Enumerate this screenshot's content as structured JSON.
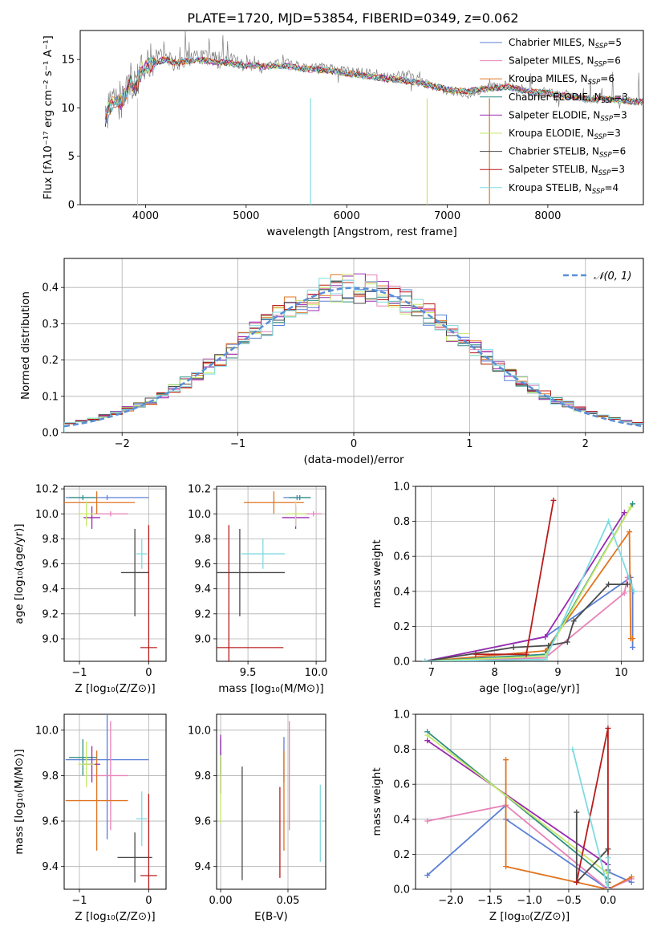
{
  "figure": {
    "title": "PLATE=1720, MJD=53854, FIBERID=0349, z=0.062"
  },
  "models": [
    {
      "name": "Chabrier MILES",
      "nssp": 5,
      "color": "#5a7fd6"
    },
    {
      "name": "Salpeter MILES",
      "nssp": 6,
      "color": "#e882b8"
    },
    {
      "name": "Kroupa MILES",
      "nssp": 6,
      "color": "#e07420"
    },
    {
      "name": "Chabrier ELODIE",
      "nssp": 3,
      "color": "#2f8f82"
    },
    {
      "name": "Salpeter ELODIE",
      "nssp": 3,
      "color": "#9a2ab0"
    },
    {
      "name": "Kroupa ELODIE",
      "nssp": 3,
      "color": "#c6e86a"
    },
    {
      "name": "Chabrier STELIB",
      "nssp": 6,
      "color": "#4a4a4a"
    },
    {
      "name": "Salpeter STELIB",
      "nssp": 3,
      "color": "#b81c1c"
    },
    {
      "name": "Kroupa STELIB",
      "nssp": 4,
      "color": "#7fdbe0"
    }
  ],
  "chart_data": [
    {
      "id": "spectrum",
      "type": "line",
      "xlabel": "wavelength [Angstrom, rest frame]",
      "ylabel": "Flux [fλ10⁻¹⁷ erg cm⁻² s⁻¹ A⁻¹]",
      "xlim": [
        3350,
        8950
      ],
      "ylim": [
        0,
        18
      ],
      "xticks": [
        4000,
        5000,
        6000,
        7000,
        8000
      ],
      "yticks": [
        0,
        5,
        10,
        15
      ],
      "grid": false,
      "legend": "top-right",
      "data_series": {
        "name": "",
        "color": "#808080",
        "x": [
          3600,
          3650,
          3700,
          3750,
          3800,
          3850,
          3900,
          3950,
          4000,
          4100,
          4200,
          4300,
          4400,
          4500,
          4600,
          4700,
          4800,
          4900,
          5000,
          5200,
          5400,
          5600,
          5800,
          6000,
          6200,
          6400,
          6600,
          6800,
          7000,
          7200,
          7400,
          7600,
          7800,
          8000,
          8200,
          8400,
          8600,
          8800,
          8950
        ],
        "y": [
          8.5,
          10.5,
          11.2,
          10.4,
          11.5,
          13.0,
          12.2,
          14.0,
          14.8,
          15.2,
          15.3,
          14.5,
          15.1,
          15.3,
          15.1,
          14.9,
          15.0,
          14.6,
          14.6,
          14.4,
          14.6,
          14.1,
          14.2,
          13.8,
          13.6,
          13.2,
          13.5,
          12.4,
          11.8,
          11.4,
          12.1,
          12.3,
          11.8,
          11.6,
          11.4,
          10.9,
          11.0,
          10.8,
          10.7
        ]
      },
      "model_fit": {
        "x": [
          3600,
          3650,
          3700,
          3750,
          3800,
          3850,
          3900,
          3950,
          4000,
          4100,
          4200,
          4300,
          4400,
          4500,
          4600,
          4700,
          4800,
          4900,
          5000,
          5200,
          5400,
          5600,
          5800,
          6000,
          6200,
          6400,
          6600,
          6800,
          7000,
          7200,
          7400,
          7600,
          7800,
          8000,
          8200,
          8400,
          8600,
          8800,
          8950
        ],
        "y": [
          8.8,
          10.2,
          10.8,
          10.6,
          11.3,
          12.6,
          12.0,
          13.6,
          14.3,
          14.7,
          15.0,
          14.6,
          14.8,
          15.0,
          14.9,
          14.7,
          14.7,
          14.5,
          14.4,
          14.3,
          14.3,
          14.0,
          13.9,
          13.6,
          13.3,
          13.0,
          12.8,
          12.4,
          11.9,
          11.7,
          12.0,
          12.2,
          11.7,
          11.5,
          11.2,
          10.9,
          10.9,
          10.7,
          10.6
        ]
      },
      "dropouts": [
        {
          "x": 3920,
          "series": "Kroupa ELODIE"
        },
        {
          "x": 5640,
          "series": "Kroupa STELIB"
        },
        {
          "x": 6800,
          "series": "Kroupa ELODIE"
        },
        {
          "x": 7420,
          "series": "Kroupa MILES"
        }
      ]
    },
    {
      "id": "residuals",
      "type": "line",
      "xlabel": "(data-model)/error",
      "ylabel": "Normed distribution",
      "xlim": [
        -2.5,
        2.5
      ],
      "ylim": [
        0,
        0.48
      ],
      "xticks": [
        -2,
        -1,
        0,
        1,
        2
      ],
      "yticks": [
        0.0,
        0.1,
        0.2,
        0.3,
        0.4
      ],
      "grid": true,
      "legend": "top-right",
      "reference": {
        "label": "𝒩(0, 1)",
        "mean": 0,
        "sigma": 1,
        "color": "#5a8fd6"
      },
      "bin_width": 0.1
    },
    {
      "id": "age-vs-Z",
      "type": "scatter",
      "xlabel": "Z [log₁₀(Z/Z⊙)]",
      "ylabel": "age  [log₁₀(age/yr)]",
      "xlim": [
        -1.22,
        0.25
      ],
      "ylim": [
        8.82,
        10.22
      ],
      "xticks": [
        -1,
        0
      ],
      "yticks": [
        9.0,
        9.2,
        9.4,
        9.6,
        9.8,
        10.0,
        10.2
      ],
      "grid": true,
      "points": [
        {
          "series": "Chabrier MILES",
          "x": -0.6,
          "y": 10.13,
          "xerr": 0.6,
          "yerr": 0.02
        },
        {
          "series": "Salpeter MILES",
          "x": -0.55,
          "y": 10.0,
          "xerr": 0.25,
          "yerr": 0.02
        },
        {
          "series": "Kroupa MILES",
          "x": -0.75,
          "y": 10.09,
          "xerr": 0.55,
          "yerr": 0.09
        },
        {
          "series": "Chabrier ELODIE",
          "x": -0.95,
          "y": 10.13,
          "xerr": 0.2,
          "yerr": 0.02
        },
        {
          "series": "Salpeter ELODIE",
          "x": -0.82,
          "y": 9.97,
          "xerr": 0.12,
          "yerr": 0.09
        },
        {
          "series": "Kroupa ELODIE",
          "x": -0.9,
          "y": 10.0,
          "xerr": 0.12,
          "yerr": 0.1
        },
        {
          "series": "Chabrier STELIB",
          "x": -0.2,
          "y": 9.53,
          "xerr": 0.2,
          "yerr": 0.35
        },
        {
          "series": "Salpeter STELIB",
          "x": 0.0,
          "y": 8.93,
          "xerr": 0.12,
          "yerr": 0.98
        },
        {
          "series": "Kroupa STELIB",
          "x": -0.1,
          "y": 9.68,
          "xerr": 0.08,
          "yerr": 0.12
        }
      ]
    },
    {
      "id": "age-vs-mass",
      "type": "scatter",
      "xlabel": "mass [log₁₀(M/M⊙)]",
      "ylabel": "",
      "xlim": [
        9.27,
        10.07
      ],
      "ylim": [
        8.82,
        10.22
      ],
      "xticks": [
        9.5,
        10.0
      ],
      "yticks": [
        9.0,
        9.2,
        9.4,
        9.6,
        9.8,
        10.0,
        10.2
      ],
      "grid": true,
      "points": [
        {
          "series": "Chabrier MILES",
          "x": 9.86,
          "y": 10.13,
          "xerr": 0.1,
          "yerr": 0.02
        },
        {
          "series": "Salpeter MILES",
          "x": 9.98,
          "y": 10.0,
          "xerr": 0.06,
          "yerr": 0.02
        },
        {
          "series": "Kroupa MILES",
          "x": 9.69,
          "y": 10.09,
          "xerr": 0.22,
          "yerr": 0.09
        },
        {
          "series": "Chabrier ELODIE",
          "x": 9.88,
          "y": 10.13,
          "xerr": 0.08,
          "yerr": 0.02
        },
        {
          "series": "Salpeter ELODIE",
          "x": 9.85,
          "y": 9.97,
          "xerr": 0.1,
          "yerr": 0.09
        },
        {
          "series": "Kroupa ELODIE",
          "x": 9.85,
          "y": 10.0,
          "xerr": 0.08,
          "yerr": 0.1
        },
        {
          "series": "Chabrier STELIB",
          "x": 9.44,
          "y": 9.53,
          "xerr": 0.33,
          "yerr": 0.35
        },
        {
          "series": "Salpeter STELIB",
          "x": 9.36,
          "y": 8.93,
          "xerr": 0.4,
          "yerr": 0.98
        },
        {
          "series": "Kroupa STELIB",
          "x": 9.61,
          "y": 9.68,
          "xerr": 0.16,
          "yerr": 0.12
        }
      ]
    },
    {
      "id": "weight-vs-age",
      "type": "line",
      "xlabel": "age  [log₁₀(age/yr)]",
      "ylabel": "mass weight",
      "xlim": [
        6.75,
        10.35
      ],
      "ylim": [
        0,
        1.0
      ],
      "xticks": [
        7,
        8,
        9,
        10
      ],
      "yticks": [
        0.0,
        0.2,
        0.4,
        0.6,
        0.8,
        1.0
      ],
      "grid": true,
      "series": [
        {
          "name": "Chabrier MILES",
          "x": [
            6.9,
            8.8,
            10.15,
            10.18,
            10.18
          ],
          "y": [
            0.0,
            0.14,
            0.48,
            0.4,
            0.08
          ]
        },
        {
          "name": "Salpeter MILES",
          "x": [
            6.9,
            8.8,
            10.05,
            10.1
          ],
          "y": [
            0.0,
            0.02,
            0.39,
            0.48
          ]
        },
        {
          "name": "Kroupa MILES",
          "x": [
            6.9,
            8.8,
            10.13,
            10.15,
            10.18
          ],
          "y": [
            0.0,
            0.06,
            0.74,
            0.13,
            0.13
          ]
        },
        {
          "name": "Chabrier ELODIE",
          "x": [
            6.9,
            8.8,
            10.18
          ],
          "y": [
            0.0,
            0.04,
            0.9
          ]
        },
        {
          "name": "Salpeter ELODIE",
          "x": [
            6.9,
            8.8,
            10.05
          ],
          "y": [
            0.0,
            0.14,
            0.85
          ]
        },
        {
          "name": "Kroupa ELODIE",
          "x": [
            6.9,
            8.8,
            10.15
          ],
          "y": [
            0.0,
            0.03,
            0.88
          ]
        },
        {
          "name": "Chabrier STELIB",
          "x": [
            6.9,
            8.3,
            8.85,
            9.15,
            9.25,
            9.8,
            10.1
          ],
          "y": [
            0.0,
            0.08,
            0.09,
            0.11,
            0.23,
            0.44,
            0.44
          ]
        },
        {
          "name": "Salpeter STELIB",
          "x": [
            7.7,
            8.5,
            8.93
          ],
          "y": [
            0.04,
            0.04,
            0.92
          ]
        },
        {
          "name": "Kroupa STELIB",
          "x": [
            6.9,
            8.8,
            9.8,
            10.2
          ],
          "y": [
            0.0,
            0.01,
            0.8,
            0.4
          ]
        }
      ]
    },
    {
      "id": "mass-vs-Z",
      "type": "scatter",
      "xlabel": "Z [log₁₀(Z/Z⊙)]",
      "ylabel": "mass [log₁₀(M/M⊙)]",
      "xlim": [
        -1.22,
        0.25
      ],
      "ylim": [
        9.3,
        10.07
      ],
      "xticks": [
        -1,
        0
      ],
      "yticks": [
        9.4,
        9.6,
        9.8,
        10.0
      ],
      "grid": true,
      "points": [
        {
          "series": "Chabrier MILES",
          "x": -0.6,
          "y": 9.87,
          "xerr": 0.6,
          "yerr": 0.35
        },
        {
          "series": "Salpeter MILES",
          "x": -0.55,
          "y": 9.8,
          "xerr": 0.25,
          "yerr": 0.24
        },
        {
          "series": "Kroupa MILES",
          "x": -0.75,
          "y": 9.69,
          "xerr": 0.45,
          "yerr": 0.22
        },
        {
          "series": "Chabrier ELODIE",
          "x": -0.95,
          "y": 9.88,
          "xerr": 0.2,
          "yerr": 0.08
        },
        {
          "series": "Salpeter ELODIE",
          "x": -0.82,
          "y": 9.85,
          "xerr": 0.12,
          "yerr": 0.08
        },
        {
          "series": "Kroupa ELODIE",
          "x": -0.9,
          "y": 9.85,
          "xerr": 0.12,
          "yerr": 0.1
        },
        {
          "series": "Chabrier STELIB",
          "x": -0.2,
          "y": 9.44,
          "xerr": 0.25,
          "yerr": 0.11
        },
        {
          "series": "Salpeter STELIB",
          "x": 0.0,
          "y": 9.36,
          "xerr": 0.12,
          "yerr": 0.36
        },
        {
          "series": "Kroupa STELIB",
          "x": -0.1,
          "y": 9.61,
          "xerr": 0.08,
          "yerr": 0.12
        }
      ]
    },
    {
      "id": "mass-vs-ebv",
      "type": "scatter",
      "xlabel": "E(B-V)",
      "ylabel": "",
      "xlim": [
        -0.003,
        0.078
      ],
      "ylim": [
        9.3,
        10.07
      ],
      "xticks": [
        0.0,
        0.05
      ],
      "yticks": [
        9.4,
        9.6,
        9.8,
        10.0
      ],
      "grid": true,
      "points": [
        {
          "series": "Chabrier MILES",
          "x": 0.047,
          "y": 9.87,
          "xerr": 0,
          "yerr": 0.1
        },
        {
          "series": "Salpeter MILES",
          "x": 0.051,
          "y": 9.8,
          "xerr": 0,
          "yerr": 0.24
        },
        {
          "series": "Kroupa MILES",
          "x": 0.047,
          "y": 9.69,
          "xerr": 0,
          "yerr": 0.22
        },
        {
          "series": "Chabrier ELODIE",
          "x": 0.0,
          "y": 9.88,
          "xerr": 0,
          "yerr": 0.08
        },
        {
          "series": "Salpeter ELODIE",
          "x": 0.0,
          "y": 9.85,
          "xerr": 0,
          "yerr": 0.13
        },
        {
          "series": "Kroupa ELODIE",
          "x": 0.0,
          "y": 9.74,
          "xerr": 0,
          "yerr": 0.15
        },
        {
          "series": "Chabrier STELIB",
          "x": 0.016,
          "y": 9.59,
          "xerr": 0,
          "yerr": 0.25
        },
        {
          "series": "Salpeter STELIB",
          "x": 0.044,
          "y": 9.55,
          "xerr": 0,
          "yerr": 0.2
        },
        {
          "series": "Kroupa STELIB",
          "x": 0.074,
          "y": 9.59,
          "xerr": 0,
          "yerr": 0.17
        }
      ]
    },
    {
      "id": "weight-vs-Z",
      "type": "line",
      "xlabel": "Z [log₁₀(Z/Z⊙)]",
      "ylabel": "mass weight",
      "xlim": [
        -2.45,
        0.45
      ],
      "ylim": [
        0,
        1.0
      ],
      "xticks": [
        -2.0,
        -1.5,
        -1.0,
        -0.5,
        0.0
      ],
      "yticks": [
        0.0,
        0.2,
        0.4,
        0.6,
        0.8,
        1.0
      ],
      "grid": true,
      "series": [
        {
          "name": "Chabrier MILES",
          "x": [
            -2.3,
            -1.3,
            -1.3,
            0.0,
            0.0,
            0.3
          ],
          "y": [
            0.08,
            0.48,
            0.4,
            0.0,
            0.1,
            0.04
          ]
        },
        {
          "name": "Salpeter MILES",
          "x": [
            -2.3,
            -1.3,
            0.0,
            0.3
          ],
          "y": [
            0.39,
            0.48,
            0.0,
            0.06
          ]
        },
        {
          "name": "Kroupa MILES",
          "x": [
            -1.3,
            -1.3,
            0.0,
            0.3
          ],
          "y": [
            0.74,
            0.13,
            0.0,
            0.07
          ]
        },
        {
          "name": "Chabrier ELODIE",
          "x": [
            -2.3,
            0.0,
            0.0
          ],
          "y": [
            0.9,
            0.06,
            0.04
          ]
        },
        {
          "name": "Salpeter ELODIE",
          "x": [
            -2.3,
            0.0,
            0.0
          ],
          "y": [
            0.85,
            0.14,
            0.01
          ]
        },
        {
          "name": "Kroupa ELODIE",
          "x": [
            -2.3,
            0.0,
            0.0
          ],
          "y": [
            0.88,
            0.09,
            0.03
          ]
        },
        {
          "name": "Chabrier STELIB",
          "x": [
            -0.4,
            -0.4,
            0.0,
            0.0
          ],
          "y": [
            0.44,
            0.04,
            0.23,
            0.11
          ]
        },
        {
          "name": "Salpeter STELIB",
          "x": [
            -0.4,
            0.0,
            0.0,
            0.0
          ],
          "y": [
            0.04,
            0.92,
            0.04,
            0.0
          ]
        },
        {
          "name": "Kroupa STELIB",
          "x": [
            -0.45,
            0.0,
            0.0
          ],
          "y": [
            0.8,
            0.0,
            0.18
          ]
        }
      ]
    }
  ]
}
